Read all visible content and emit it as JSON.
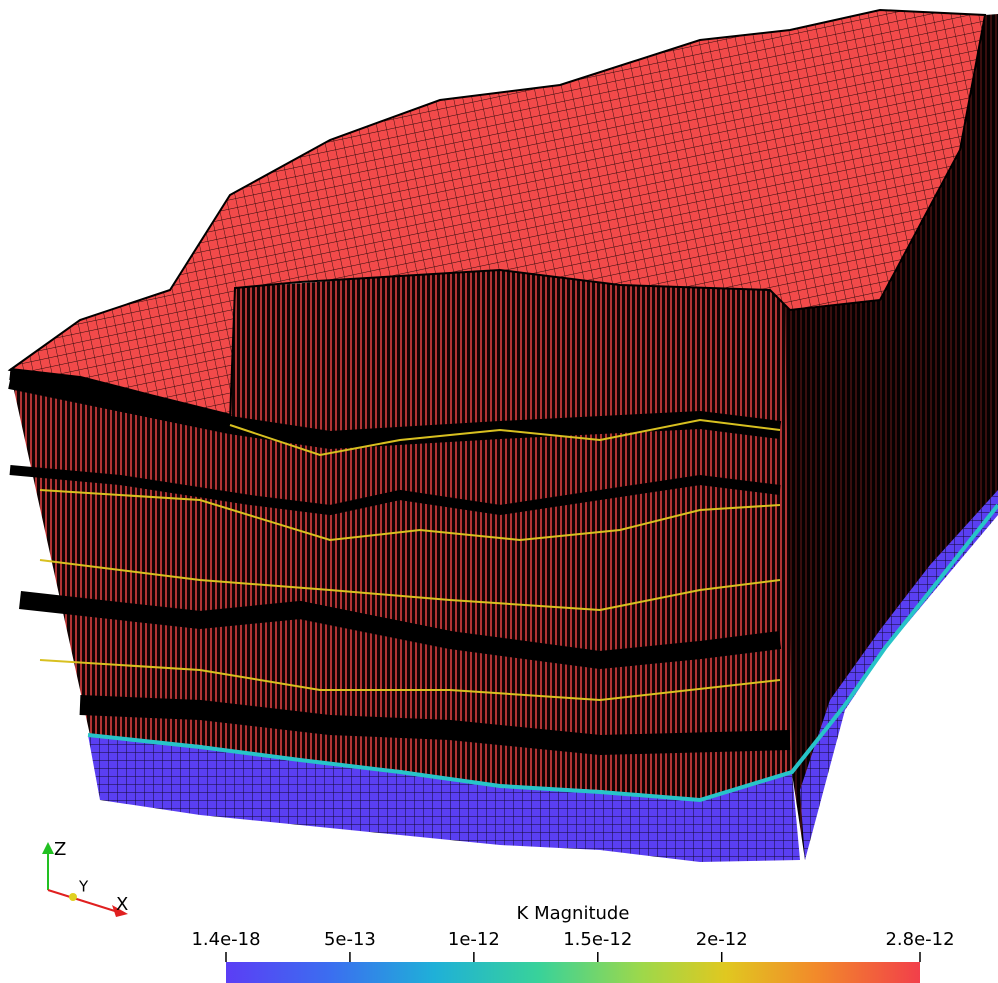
{
  "colorbar": {
    "title": "K Magnitude",
    "range": [
      1.4e-18,
      2.8e-12
    ],
    "ticks": [
      {
        "value": 1.4e-18,
        "label": "1.4e-18"
      },
      {
        "value": 5e-13,
        "label": "5e-13"
      },
      {
        "value": 1e-12,
        "label": "1e-12"
      },
      {
        "value": 1.5e-12,
        "label": "1.5e-12"
      },
      {
        "value": 2e-12,
        "label": "2e-12"
      },
      {
        "value": 2.8e-12,
        "label": "2.8e-12"
      }
    ]
  },
  "axes_triad": {
    "x": "X",
    "y": "Y",
    "z": "Z"
  }
}
